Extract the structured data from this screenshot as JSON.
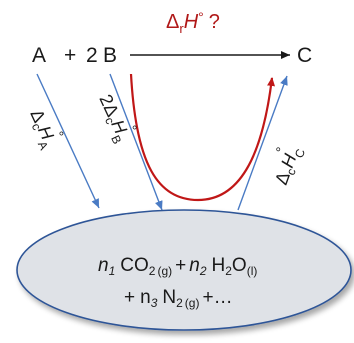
{
  "reaction": {
    "species_a": "A",
    "plus": "+",
    "coef_b": "2",
    "species_b": "B",
    "species_c": "C"
  },
  "reaction_enthalpy": {
    "delta": "Δ",
    "subscript": "r",
    "symbol": "H",
    "degree": "°",
    "question": "?"
  },
  "combustion_labels": {
    "delta": "Δ",
    "subscript": "c",
    "symbol": "H",
    "degree": "°",
    "a_sub": "A",
    "b_coef": "2",
    "b_sub": "B",
    "c_sub": "C"
  },
  "products": {
    "n1": "n",
    "n1_sub": "1",
    "co2": "CO",
    "co2_sub": "2",
    "phase_g": "(g)",
    "plus": "+",
    "n2": "n",
    "n2_sub": "2",
    "h2o_h": "H",
    "h2o_sub": "2",
    "h2o_o": "O",
    "phase_l": "(l)",
    "n3": "n",
    "n3_sub": "3",
    "n2_gas": "N",
    "n2_gas_sub": "2",
    "ellipsis": "+…"
  },
  "colors": {
    "red_path": "#c01717",
    "blue_arrow": "#4a7bc4",
    "ellipse_fill": "#dfe2e7",
    "ellipse_stroke": "#2f5597",
    "text": "#1a1a1a"
  }
}
